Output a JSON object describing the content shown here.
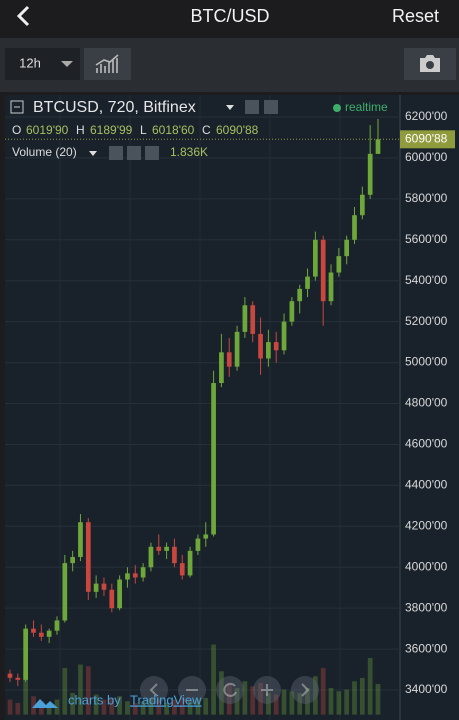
{
  "header": {
    "title": "BTC/USD",
    "reset": "Reset"
  },
  "toolbar": {
    "interval": "12h"
  },
  "chart_data": {
    "type": "candlestick",
    "symbol": "BTCUSD, 720, Bitfinex",
    "status": "realtime",
    "ohlc": {
      "o_key": "O",
      "o": "6019'90",
      "h_key": "H",
      "h": "6189'99",
      "l_key": "L",
      "l": "6018'60",
      "c_key": "C",
      "c": "6090'88"
    },
    "volume_title": "Volume (20)",
    "volume_label": "1.836K",
    "last_price": {
      "value": 6090.88,
      "label": "6090'88"
    },
    "up_color": "#6fa83a",
    "down_color": "#c9473f",
    "ylim": [
      3280,
      6280
    ],
    "yticks": [
      {
        "value": 3400,
        "label": "3400'00"
      },
      {
        "value": 3600,
        "label": "3600'00"
      },
      {
        "value": 3800,
        "label": "3800'00"
      },
      {
        "value": 4000,
        "label": "4000'00"
      },
      {
        "value": 4200,
        "label": "4200'00"
      },
      {
        "value": 4400,
        "label": "4400'00"
      },
      {
        "value": 4600,
        "label": "4600'00"
      },
      {
        "value": 4800,
        "label": "4800'00"
      },
      {
        "value": 5000,
        "label": "5000'00"
      },
      {
        "value": 5200,
        "label": "5200'00"
      },
      {
        "value": 5400,
        "label": "5400'00"
      },
      {
        "value": 5600,
        "label": "5600'00"
      },
      {
        "value": 5800,
        "label": "5800'00"
      },
      {
        "value": 6000,
        "label": "6000'00"
      },
      {
        "value": 6200,
        "label": "6200'00"
      }
    ],
    "grid": true,
    "open": [
      3480,
      3460,
      3450,
      3700,
      3680,
      3660,
      3690,
      3740,
      4020,
      4050,
      4220,
      3880,
      3920,
      3890,
      3800,
      3940,
      3970,
      3950,
      4000,
      4100,
      4080,
      4100,
      4020,
      3960,
      4080,
      4140,
      4160,
      4900,
      5050,
      4980,
      5150,
      5280,
      5140,
      5020,
      5100,
      5060,
      5200,
      5300,
      5360,
      5420,
      5600,
      5300,
      5440,
      5520,
      5600,
      5720,
      5820,
      6019.9
    ],
    "high": [
      3500,
      3480,
      3720,
      3740,
      3720,
      3700,
      3760,
      4060,
      4080,
      4260,
      4240,
      3960,
      3950,
      3920,
      3960,
      4000,
      4010,
      4020,
      4120,
      4160,
      4120,
      4140,
      4060,
      4100,
      4160,
      4220,
      4960,
      5140,
      5120,
      5180,
      5320,
      5300,
      5220,
      5160,
      5150,
      5240,
      5320,
      5380,
      5460,
      5640,
      5620,
      5480,
      5560,
      5620,
      5760,
      5860,
      6160,
      6189.99
    ],
    "low": [
      3440,
      3420,
      3440,
      3660,
      3640,
      3630,
      3670,
      3730,
      3980,
      4030,
      3840,
      3850,
      3860,
      3780,
      3790,
      3900,
      3920,
      3930,
      3980,
      4060,
      4040,
      4000,
      3940,
      3950,
      4060,
      4100,
      4150,
      4880,
      4930,
      4960,
      5120,
      5100,
      4940,
      4980,
      5000,
      5040,
      5180,
      5240,
      5320,
      5400,
      5180,
      5280,
      5420,
      5480,
      5580,
      5700,
      5800,
      6018.6
    ],
    "close": [
      3460,
      3450,
      3700,
      3680,
      3660,
      3690,
      3740,
      4020,
      4050,
      4220,
      3880,
      3920,
      3890,
      3800,
      3940,
      3970,
      3950,
      4000,
      4100,
      4080,
      4100,
      4020,
      3960,
      4080,
      4140,
      4160,
      4900,
      5050,
      4980,
      5150,
      5280,
      5140,
      5020,
      5100,
      5060,
      5200,
      5300,
      5360,
      5420,
      5600,
      5300,
      5440,
      5520,
      5600,
      5720,
      5820,
      6019.9,
      6090.88
    ],
    "volume": [
      900,
      700,
      2600,
      1100,
      800,
      700,
      900,
      2800,
      1300,
      3000,
      2900,
      1200,
      900,
      1000,
      1100,
      800,
      700,
      800,
      1000,
      900,
      700,
      900,
      1000,
      800,
      900,
      1000,
      4200,
      2600,
      1800,
      1600,
      2000,
      1700,
      1900,
      1300,
      1200,
      1500,
      1400,
      1300,
      1600,
      2300,
      2800,
      1600,
      1400,
      1500,
      2000,
      2200,
      3400,
      1836
    ]
  },
  "footer": {
    "prefix": "charts by",
    "brand": "TradingView"
  }
}
